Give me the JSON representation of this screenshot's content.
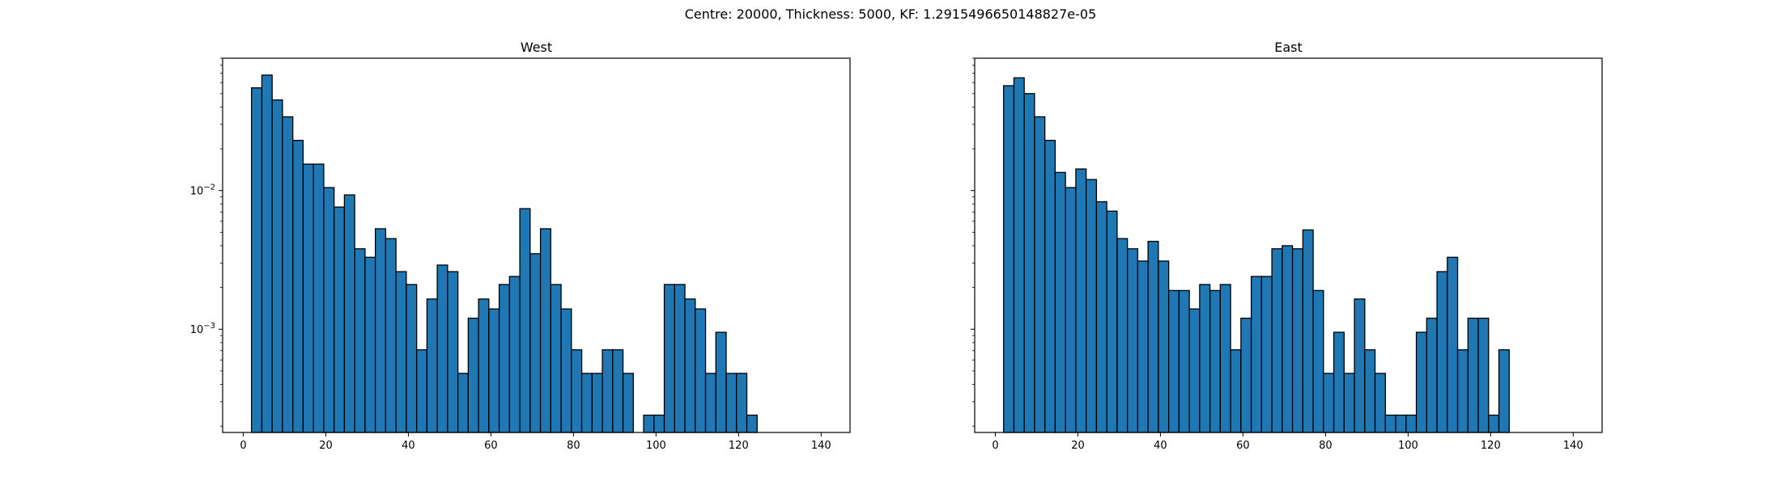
{
  "figure": {
    "suptitle": "Centre: 20000, Thickness: 5000, KF: 1.2915496650148827e-05"
  },
  "chart_data": [
    {
      "type": "bar",
      "title": "West",
      "xlabel": "",
      "ylabel": "",
      "yscale": "log",
      "xlim": [
        -5,
        147
      ],
      "ylim": [
        0.00018,
        0.09
      ],
      "xticks": [
        0,
        20,
        40,
        60,
        80,
        100,
        120,
        140
      ],
      "yticks": [
        {
          "value": 0.01,
          "base": "10",
          "exp": "−2"
        },
        {
          "value": 0.001,
          "base": "10",
          "exp": "−3"
        }
      ],
      "bin_start": 2,
      "bin_width": 2.5,
      "color": "#1f77b4",
      "edgecolor": "#000000",
      "values": [
        0.055,
        0.068,
        0.045,
        0.034,
        0.023,
        0.0155,
        0.0155,
        0.0105,
        0.0076,
        0.0093,
        0.0038,
        0.0033,
        0.0053,
        0.0045,
        0.0026,
        0.0021,
        0.00071,
        0.00165,
        0.0029,
        0.0026,
        0.00048,
        0.0012,
        0.00165,
        0.0014,
        0.0021,
        0.0024,
        0.0074,
        0.0035,
        0.0053,
        0.0021,
        0.0014,
        0.00071,
        0.00048,
        0.00048,
        0.00071,
        0.00071,
        0.00048,
        0,
        0.00024,
        0.00024,
        0.0021,
        0.0021,
        0.00165,
        0.0014,
        0.00048,
        0.00095,
        0.00048,
        0.00048,
        0.00024
      ]
    },
    {
      "type": "bar",
      "title": "East",
      "xlabel": "",
      "ylabel": "",
      "yscale": "log",
      "xlim": [
        -5,
        147
      ],
      "ylim": [
        0.00018,
        0.09
      ],
      "xticks": [
        0,
        20,
        40,
        60,
        80,
        100,
        120,
        140
      ],
      "yticks": [],
      "bin_start": 2,
      "bin_width": 2.5,
      "color": "#1f77b4",
      "edgecolor": "#000000",
      "values": [
        0.057,
        0.065,
        0.05,
        0.034,
        0.023,
        0.0135,
        0.0105,
        0.0143,
        0.012,
        0.0083,
        0.0071,
        0.0045,
        0.0038,
        0.0031,
        0.0043,
        0.0031,
        0.0019,
        0.0019,
        0.0014,
        0.0021,
        0.0019,
        0.0021,
        0.00071,
        0.0012,
        0.0024,
        0.0024,
        0.0038,
        0.004,
        0.0038,
        0.0052,
        0.0019,
        0.00048,
        0.00095,
        0.00048,
        0.00165,
        0.00071,
        0.00048,
        0.00024,
        0.00024,
        0.00024,
        0.00095,
        0.0012,
        0.0026,
        0.0033,
        0.00071,
        0.0012,
        0.0012,
        0.00024,
        0.00071
      ]
    }
  ]
}
